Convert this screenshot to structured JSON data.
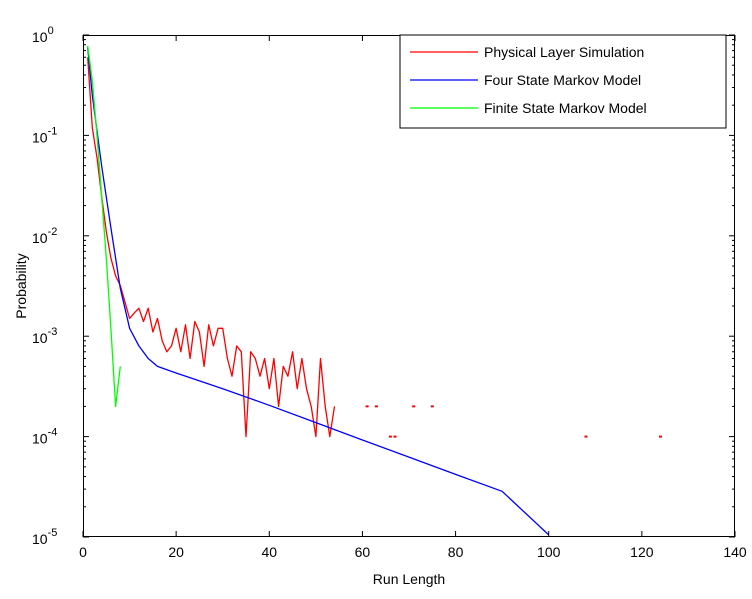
{
  "chart_data": {
    "type": "line",
    "xlabel": "Run Length",
    "ylabel": "Probability",
    "xlim": [
      0,
      140
    ],
    "ylim": [
      1e-05,
      1
    ],
    "yscale": "log",
    "grid": false,
    "legend_position": "top-right",
    "x_ticks": [
      {
        "value": 0,
        "label": "0"
      },
      {
        "value": 20,
        "label": "20"
      },
      {
        "value": 40,
        "label": "40"
      },
      {
        "value": 60,
        "label": "60"
      },
      {
        "value": 80,
        "label": "80"
      },
      {
        "value": 100,
        "label": "100"
      },
      {
        "value": 120,
        "label": "120"
      },
      {
        "value": 140,
        "label": "140"
      }
    ],
    "y_ticks": [
      {
        "value": 1,
        "base": "10",
        "exp": "0"
      },
      {
        "value": 0.1,
        "base": "10",
        "exp": "-1"
      },
      {
        "value": 0.01,
        "base": "10",
        "exp": "-2"
      },
      {
        "value": 0.001,
        "base": "10",
        "exp": "-3"
      },
      {
        "value": 0.0001,
        "base": "10",
        "exp": "-4"
      },
      {
        "value": 1e-05,
        "base": "10",
        "exp": "-5"
      }
    ],
    "series": [
      {
        "name": "Physical Layer Simulation",
        "color": "#ff0000",
        "x": [
          1,
          2,
          3,
          4,
          5,
          6,
          7,
          8,
          9,
          10,
          11,
          12,
          13,
          14,
          15,
          16,
          17,
          18,
          19,
          20,
          21,
          22,
          23,
          24,
          25,
          26,
          27,
          28,
          29,
          30,
          31,
          32,
          33,
          34,
          35,
          36,
          37,
          38,
          39,
          40,
          41,
          42,
          43,
          44,
          45,
          46,
          47,
          48,
          49,
          50,
          51,
          52,
          53,
          54
        ],
        "y": [
          0.6,
          0.12,
          0.06,
          0.025,
          0.011,
          0.006,
          0.004,
          0.0032,
          0.0022,
          0.0015,
          0.0017,
          0.0019,
          0.0014,
          0.0019,
          0.0011,
          0.0015,
          0.0009,
          0.0007,
          0.0008,
          0.0012,
          0.0007,
          0.0013,
          0.0006,
          0.0014,
          0.0011,
          0.0005,
          0.0013,
          0.0008,
          0.0012,
          0.0012,
          0.0006,
          0.0004,
          0.0008,
          0.0007,
          0.0001,
          0.0007,
          0.0006,
          0.0004,
          0.0006,
          0.0003,
          0.0006,
          0.0002,
          0.0005,
          0.0004,
          0.0007,
          0.0003,
          0.0006,
          0.0003,
          0.0002,
          0.0001,
          0.0006,
          0.0002,
          0.0001,
          0.0002
        ]
      },
      {
        "name": "Four State Markov Model",
        "color": "#0000ff",
        "x": [
          1,
          2,
          4,
          6,
          8,
          10,
          12,
          14,
          16,
          20,
          30,
          40,
          50,
          60,
          70,
          80,
          90,
          100
        ],
        "y": [
          0.75,
          0.25,
          0.05,
          0.012,
          0.003,
          0.0012,
          0.0008,
          0.0006,
          0.0005,
          0.00043,
          0.0003,
          0.000205,
          0.000138,
          9.25e-05,
          6.25e-05,
          4.2e-05,
          2.85e-05,
          1.05e-05
        ]
      },
      {
        "name": "Finite State Markov Model",
        "color": "#00ff00",
        "x": [
          1,
          2,
          3,
          4,
          5,
          6,
          7,
          8
        ],
        "y": [
          0.78,
          0.35,
          0.1,
          0.025,
          0.006,
          0.0012,
          0.0002,
          0.0005
        ]
      }
    ],
    "scatter_points": [
      {
        "x": 61,
        "y": 0.0002
      },
      {
        "x": 63,
        "y": 0.0002
      },
      {
        "x": 66,
        "y": 0.0001
      },
      {
        "x": 67,
        "y": 0.0001
      },
      {
        "x": 71,
        "y": 0.0002
      },
      {
        "x": 75,
        "y": 0.0002
      },
      {
        "x": 108,
        "y": 0.0001
      },
      {
        "x": 124,
        "y": 0.0001
      }
    ]
  }
}
